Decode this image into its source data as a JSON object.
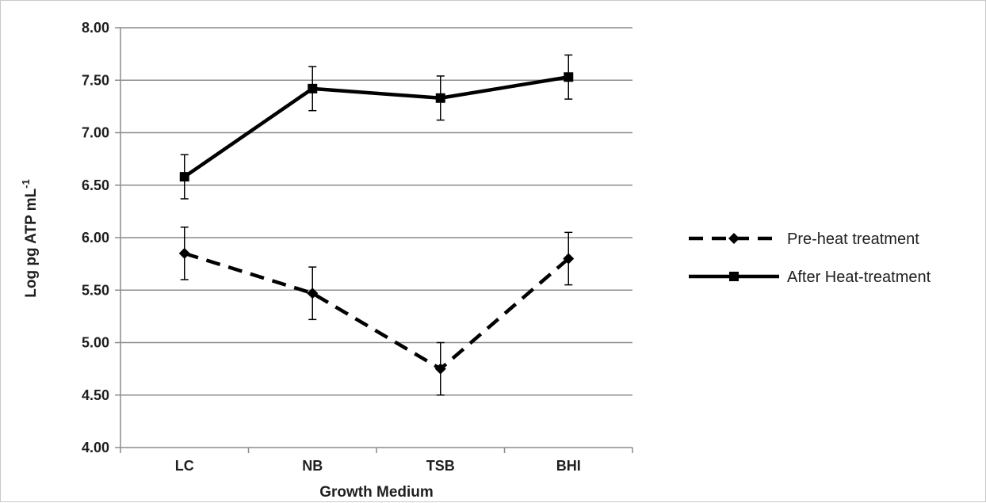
{
  "chart_data": {
    "type": "line",
    "categories": [
      "LC",
      "NB",
      "TSB",
      "BHI"
    ],
    "series": [
      {
        "name": "Pre-heat treatment",
        "values": [
          5.85,
          5.47,
          4.75,
          5.8
        ],
        "error": [
          0.25,
          0.25,
          0.25,
          0.25
        ],
        "line_style": "dashed",
        "marker": "diamond",
        "color": "#000000"
      },
      {
        "name": "After Heat-treatment",
        "values": [
          6.58,
          7.42,
          7.33,
          7.53
        ],
        "error": [
          0.21,
          0.21,
          0.21,
          0.21
        ],
        "line_style": "solid",
        "marker": "square",
        "color": "#000000"
      }
    ],
    "xlabel": "Growth Medium",
    "ylabel": {
      "main": "Log pg ATP mL",
      "superscript": "-1"
    },
    "ylim": [
      4.0,
      8.0
    ],
    "yticks": [
      "4.00",
      "4.50",
      "5.00",
      "5.50",
      "6.00",
      "6.50",
      "7.00",
      "7.50",
      "8.00"
    ],
    "grid": "horizontal",
    "legend_position": "right",
    "gridline_color": "#8c8c8c"
  }
}
